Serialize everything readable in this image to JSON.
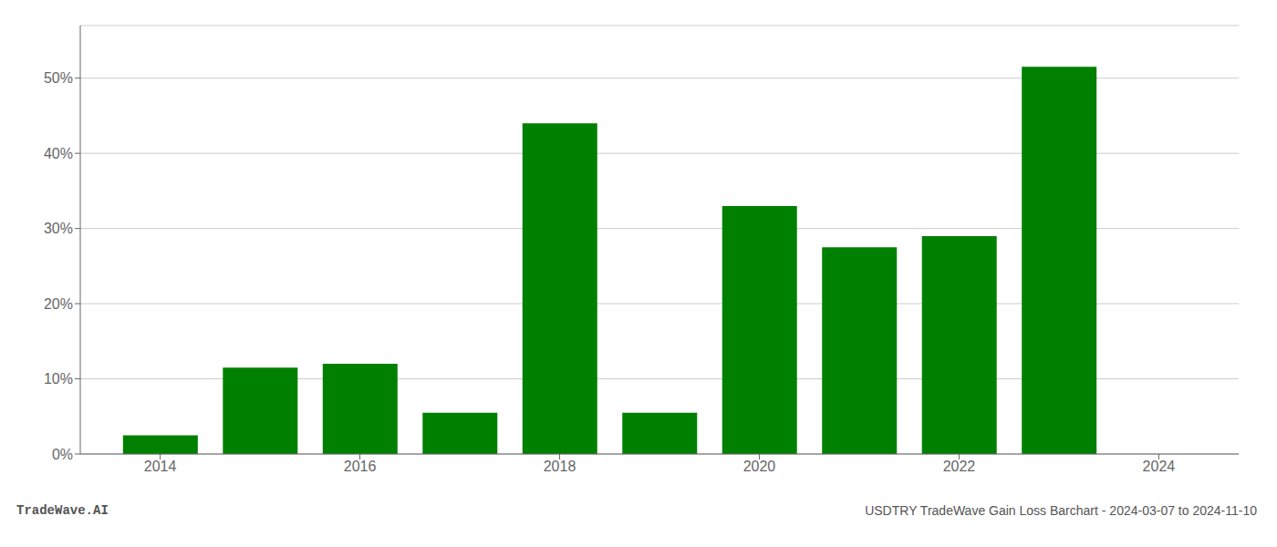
{
  "chart_data": {
    "type": "bar",
    "x": [
      2014,
      2015,
      2016,
      2017,
      2018,
      2019,
      2020,
      2021,
      2022,
      2023
    ],
    "values": [
      2.5,
      11.5,
      12.0,
      5.5,
      44.0,
      5.5,
      33.0,
      27.5,
      29.0,
      51.5
    ],
    "color": "#008000",
    "xlim": [
      2013.2,
      2024.8
    ],
    "xticks": [
      2014,
      2016,
      2018,
      2020,
      2022,
      2024
    ],
    "ylim": [
      0,
      57
    ],
    "yticks": [
      {
        "value": 0,
        "label": "0%"
      },
      {
        "value": 10,
        "label": "10%"
      },
      {
        "value": 20,
        "label": "20%"
      },
      {
        "value": 30,
        "label": "30%"
      },
      {
        "value": 40,
        "label": "40%"
      },
      {
        "value": 50,
        "label": "50%"
      }
    ],
    "grid": true,
    "annotations": [
      "TradeWave.AI",
      "USDTRY TradeWave Gain Loss Barchart - 2024-03-07 to 2024-11-10"
    ]
  }
}
